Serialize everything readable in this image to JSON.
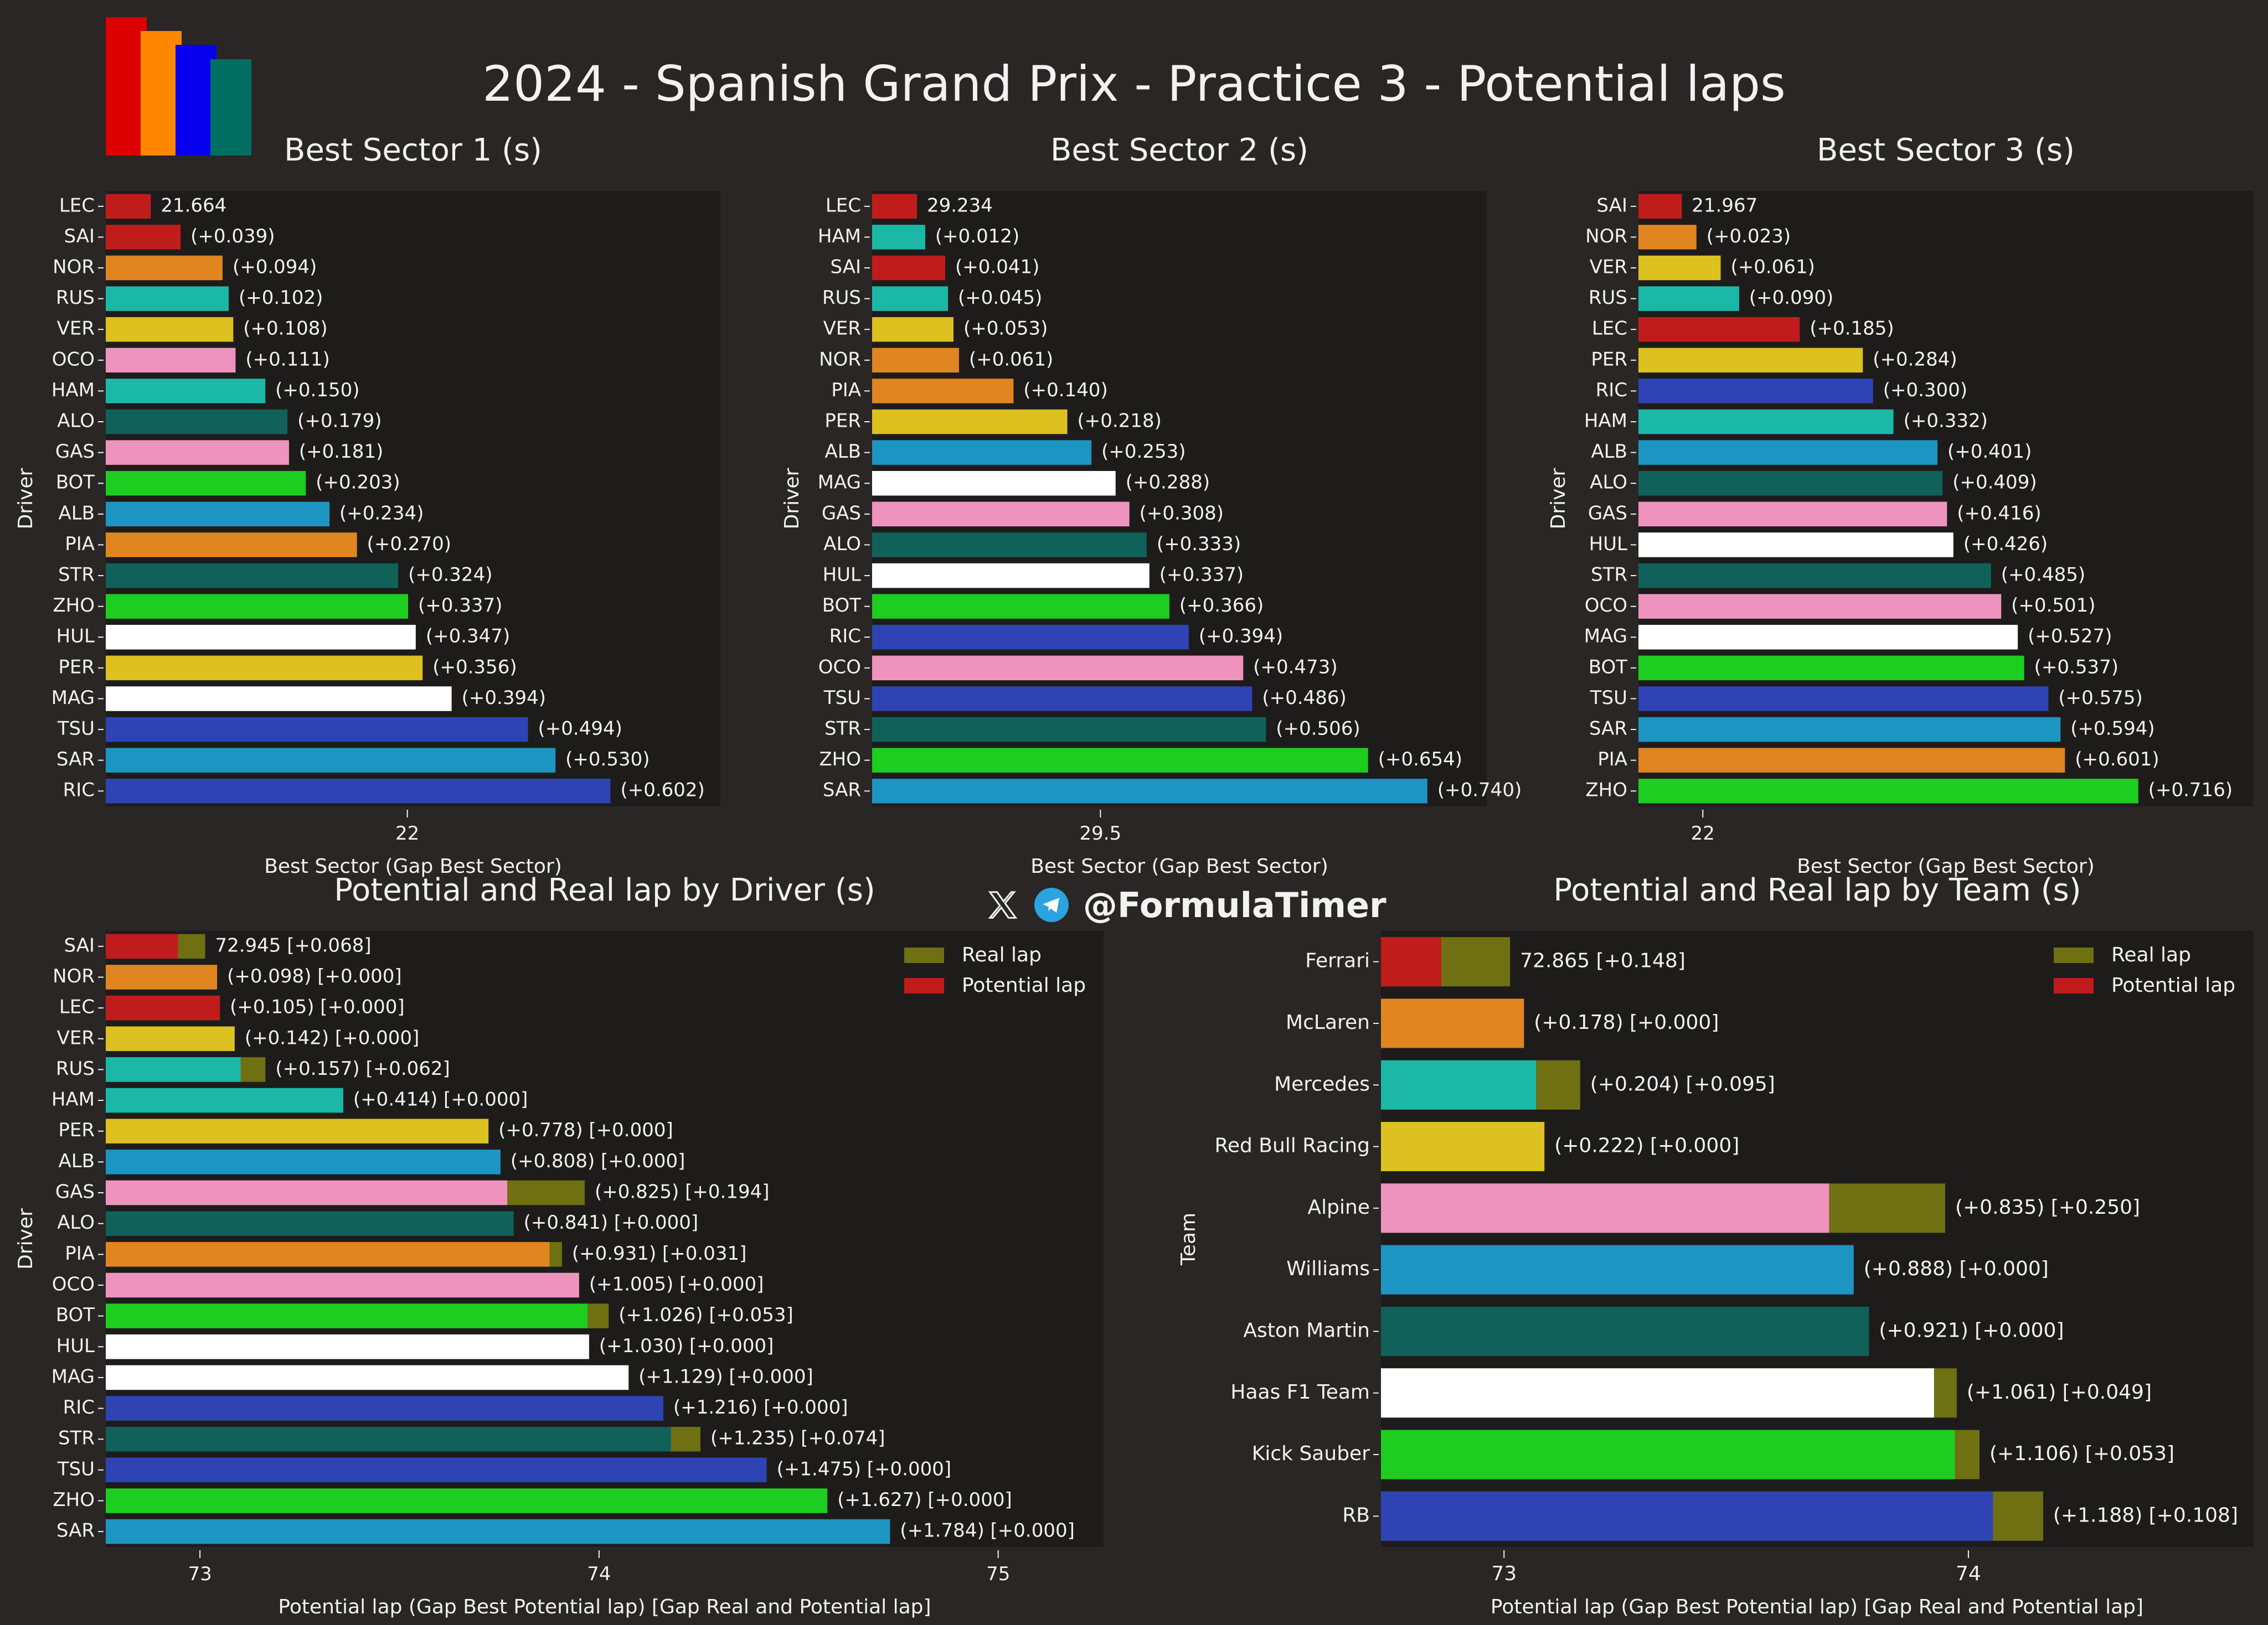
{
  "figure": {
    "title": "2024 - Spanish Grand Prix - Practice 3 - Potential laps",
    "logo_colors": [
      "#dc0000",
      "#ff8700",
      "#0600ef",
      "#006f62"
    ],
    "watermark": {
      "handle": "@FormulaTimer",
      "icons": [
        "x-logo-icon",
        "telegram-icon"
      ]
    },
    "colors": {
      "figure_bg": "#292625",
      "axes_bg": "#1e1c1b",
      "text": "#f2f2f2",
      "real_lap": "#6e7012",
      "potential_lap": "#c01c1c"
    }
  },
  "chart_data": [
    {
      "id": "sector1",
      "type": "bar",
      "orientation": "horizontal",
      "title": "Best Sector 1 (s)",
      "xlabel": "Best Sector (Gap Best Sector)",
      "ylabel": "Driver",
      "xlim": [
        21.605,
        22.41
      ],
      "xticks": [
        22
      ],
      "xtick_labels": [
        "22"
      ],
      "grid": false,
      "categories": [
        "LEC",
        "SAI",
        "NOR",
        "RUS",
        "VER",
        "OCO",
        "HAM",
        "ALO",
        "GAS",
        "BOT",
        "ALB",
        "PIA",
        "STR",
        "ZHO",
        "HUL",
        "PER",
        "MAG",
        "TSU",
        "SAR",
        "RIC"
      ],
      "values": [
        21.664,
        21.703,
        21.758,
        21.766,
        21.772,
        21.775,
        21.814,
        21.843,
        21.845,
        21.867,
        21.898,
        21.934,
        21.988,
        22.001,
        22.011,
        22.02,
        22.058,
        22.158,
        22.194,
        22.266
      ],
      "labels": [
        "21.664",
        "(+0.039)",
        "(+0.094)",
        "(+0.102)",
        "(+0.108)",
        "(+0.111)",
        "(+0.150)",
        "(+0.179)",
        "(+0.181)",
        "(+0.203)",
        "(+0.234)",
        "(+0.270)",
        "(+0.324)",
        "(+0.337)",
        "(+0.347)",
        "(+0.356)",
        "(+0.394)",
        "(+0.494)",
        "(+0.530)",
        "(+0.602)"
      ],
      "colors": [
        "#c01c1c",
        "#c01c1c",
        "#e08520",
        "#1bb8a8",
        "#dcc120",
        "#ee93bd",
        "#1bb8a8",
        "#10615a",
        "#ee93bd",
        "#1dcd1f",
        "#1d95c3",
        "#e08520",
        "#10615a",
        "#1dcd1f",
        "#ffffff",
        "#dcc120",
        "#ffffff",
        "#2e44b4",
        "#1d95c3",
        "#2e44b4"
      ]
    },
    {
      "id": "sector2",
      "type": "bar",
      "orientation": "horizontal",
      "title": "Best Sector 2 (s)",
      "xlabel": "Best Sector (Gap Best Sector)",
      "ylabel": "Driver",
      "xlim": [
        29.169,
        30.06
      ],
      "xticks": [
        29.5
      ],
      "xtick_labels": [
        "29.5"
      ],
      "grid": false,
      "categories": [
        "LEC",
        "HAM",
        "SAI",
        "RUS",
        "VER",
        "NOR",
        "PIA",
        "PER",
        "ALB",
        "MAG",
        "GAS",
        "ALO",
        "HUL",
        "BOT",
        "RIC",
        "OCO",
        "TSU",
        "STR",
        "ZHO",
        "SAR"
      ],
      "values": [
        29.234,
        29.246,
        29.275,
        29.279,
        29.287,
        29.295,
        29.374,
        29.452,
        29.487,
        29.522,
        29.542,
        29.567,
        29.571,
        29.6,
        29.628,
        29.707,
        29.72,
        29.74,
        29.888,
        29.974
      ],
      "labels": [
        "29.234",
        "(+0.012)",
        "(+0.041)",
        "(+0.045)",
        "(+0.053)",
        "(+0.061)",
        "(+0.140)",
        "(+0.218)",
        "(+0.253)",
        "(+0.288)",
        "(+0.308)",
        "(+0.333)",
        "(+0.337)",
        "(+0.366)",
        "(+0.394)",
        "(+0.473)",
        "(+0.486)",
        "(+0.506)",
        "(+0.654)",
        "(+0.740)"
      ],
      "colors": [
        "#c01c1c",
        "#1bb8a8",
        "#c01c1c",
        "#1bb8a8",
        "#dcc120",
        "#e08520",
        "#e08520",
        "#dcc120",
        "#1d95c3",
        "#ffffff",
        "#ee93bd",
        "#10615a",
        "#ffffff",
        "#1dcd1f",
        "#2e44b4",
        "#ee93bd",
        "#2e44b4",
        "#10615a",
        "#1dcd1f",
        "#1d95c3"
      ]
    },
    {
      "id": "sector3",
      "type": "bar",
      "orientation": "horizontal",
      "title": "Best Sector 3 (s)",
      "xlabel": "Best Sector (Gap Best Sector)",
      "ylabel": "Driver",
      "xlim": [
        21.899,
        22.863
      ],
      "xticks": [
        22
      ],
      "xtick_labels": [
        "22"
      ],
      "grid": false,
      "categories": [
        "SAI",
        "NOR",
        "VER",
        "RUS",
        "LEC",
        "PER",
        "RIC",
        "HAM",
        "ALB",
        "ALO",
        "GAS",
        "HUL",
        "STR",
        "OCO",
        "MAG",
        "BOT",
        "TSU",
        "SAR",
        "PIA",
        "ZHO"
      ],
      "values": [
        21.967,
        21.99,
        22.028,
        22.057,
        22.152,
        22.251,
        22.267,
        22.299,
        22.368,
        22.376,
        22.383,
        22.393,
        22.452,
        22.468,
        22.494,
        22.504,
        22.542,
        22.561,
        22.568,
        22.683
      ],
      "labels": [
        "21.967",
        "(+0.023)",
        "(+0.061)",
        "(+0.090)",
        "(+0.185)",
        "(+0.284)",
        "(+0.300)",
        "(+0.332)",
        "(+0.401)",
        "(+0.409)",
        "(+0.416)",
        "(+0.426)",
        "(+0.485)",
        "(+0.501)",
        "(+0.527)",
        "(+0.537)",
        "(+0.575)",
        "(+0.594)",
        "(+0.601)",
        "(+0.716)"
      ],
      "colors": [
        "#c01c1c",
        "#e08520",
        "#dcc120",
        "#1bb8a8",
        "#c01c1c",
        "#dcc120",
        "#2e44b4",
        "#1bb8a8",
        "#1d95c3",
        "#10615a",
        "#ee93bd",
        "#ffffff",
        "#10615a",
        "#ee93bd",
        "#ffffff",
        "#1dcd1f",
        "#2e44b4",
        "#1d95c3",
        "#e08520",
        "#1dcd1f"
      ]
    },
    {
      "id": "driver_laps",
      "type": "bar",
      "orientation": "horizontal",
      "stacked": true,
      "title": "Potential and Real lap by Driver (s)",
      "xlabel": "Potential lap (Gap Best Potential lap) [Gap Real and Potential lap]",
      "ylabel": "Driver",
      "xlim": [
        72.764,
        75.264
      ],
      "xticks": [
        73,
        74,
        75
      ],
      "xtick_labels": [
        "73",
        "74",
        "75"
      ],
      "grid": false,
      "legend": {
        "position": "top-right",
        "entries": [
          "Real lap",
          "Potential lap"
        ]
      },
      "categories": [
        "SAI",
        "NOR",
        "LEC",
        "VER",
        "RUS",
        "HAM",
        "PER",
        "ALB",
        "GAS",
        "ALO",
        "PIA",
        "OCO",
        "BOT",
        "HUL",
        "MAG",
        "RIC",
        "STR",
        "TSU",
        "ZHO",
        "SAR"
      ],
      "series": [
        {
          "name": "Potential lap",
          "values": [
            72.945,
            73.043,
            73.05,
            73.087,
            73.102,
            73.359,
            73.723,
            73.753,
            73.77,
            73.786,
            73.876,
            73.95,
            73.971,
            73.975,
            74.074,
            74.161,
            74.18,
            74.42,
            74.572,
            74.729
          ]
        },
        {
          "name": "Real lap",
          "values": [
            73.013,
            73.043,
            73.05,
            73.087,
            73.164,
            73.359,
            73.723,
            73.753,
            73.964,
            73.786,
            73.907,
            73.95,
            74.024,
            73.975,
            74.074,
            74.161,
            74.254,
            74.42,
            74.572,
            74.729
          ]
        }
      ],
      "labels": [
        "72.945 [+0.068]",
        "(+0.098) [+0.000]",
        "(+0.105) [+0.000]",
        "(+0.142) [+0.000]",
        "(+0.157) [+0.062]",
        "(+0.414) [+0.000]",
        "(+0.778) [+0.000]",
        "(+0.808) [+0.000]",
        "(+0.825) [+0.194]",
        "(+0.841) [+0.000]",
        "(+0.931) [+0.031]",
        "(+1.005) [+0.000]",
        "(+1.026) [+0.053]",
        "(+1.030) [+0.000]",
        "(+1.129) [+0.000]",
        "(+1.216) [+0.000]",
        "(+1.235) [+0.074]",
        "(+1.475) [+0.000]",
        "(+1.627) [+0.000]",
        "(+1.784) [+0.000]"
      ],
      "colors": [
        "#c01c1c",
        "#e08520",
        "#c01c1c",
        "#dcc120",
        "#1bb8a8",
        "#1bb8a8",
        "#dcc120",
        "#1d95c3",
        "#ee93bd",
        "#10615a",
        "#e08520",
        "#ee93bd",
        "#1dcd1f",
        "#ffffff",
        "#ffffff",
        "#2e44b4",
        "#10615a",
        "#2e44b4",
        "#1dcd1f",
        "#1d95c3"
      ]
    },
    {
      "id": "team_laps",
      "type": "bar",
      "orientation": "horizontal",
      "stacked": true,
      "title": "Potential and Real lap by Team (s)",
      "xlabel": "Potential lap (Gap Best Potential lap) [Gap Real and Potential lap]",
      "ylabel": "Team",
      "xlim": [
        72.735,
        74.613
      ],
      "xticks": [
        73,
        74
      ],
      "xtick_labels": [
        "73",
        "74"
      ],
      "grid": false,
      "legend": {
        "position": "top-right",
        "entries": [
          "Real lap",
          "Potential lap"
        ]
      },
      "categories": [
        "Ferrari",
        "McLaren",
        "Mercedes",
        "Red Bull Racing",
        "Alpine",
        "Williams",
        "Aston Martin",
        "Haas F1 Team",
        "Kick Sauber",
        "RB"
      ],
      "series": [
        {
          "name": "Potential lap",
          "values": [
            72.865,
            73.043,
            73.069,
            73.087,
            73.7,
            73.753,
            73.786,
            73.926,
            73.971,
            74.053
          ]
        },
        {
          "name": "Real lap",
          "values": [
            73.013,
            73.043,
            73.164,
            73.087,
            73.95,
            73.753,
            73.786,
            73.975,
            74.024,
            74.161
          ]
        }
      ],
      "labels": [
        "72.865 [+0.148]",
        "(+0.178) [+0.000]",
        "(+0.204) [+0.095]",
        "(+0.222) [+0.000]",
        "(+0.835) [+0.250]",
        "(+0.888) [+0.000]",
        "(+0.921) [+0.000]",
        "(+1.061) [+0.049]",
        "(+1.106) [+0.053]",
        "(+1.188) [+0.108]"
      ],
      "colors": [
        "#c01c1c",
        "#e08520",
        "#1bb8a8",
        "#dcc120",
        "#ee93bd",
        "#1d95c3",
        "#10615a",
        "#ffffff",
        "#1dcd1f",
        "#2e44b4"
      ]
    }
  ]
}
